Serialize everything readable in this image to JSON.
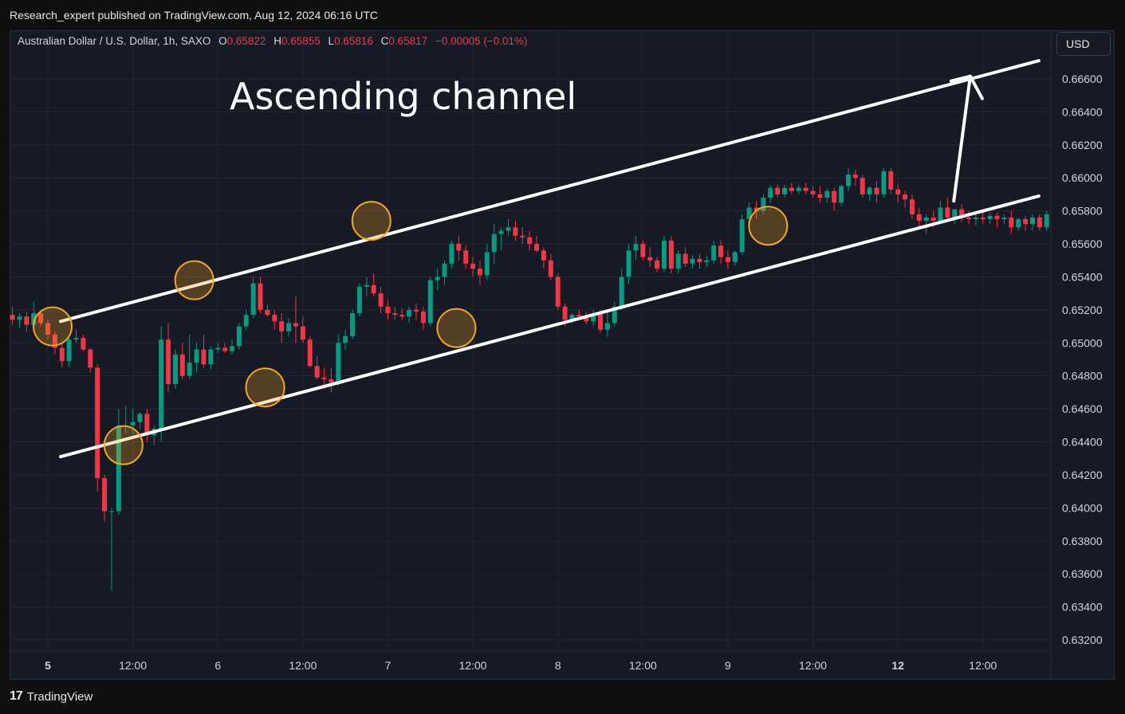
{
  "header": {
    "publish_note": "Research_expert published on TradingView.com, Aug 12, 2024 06:16 UTC"
  },
  "legend": {
    "symbol": "Australian Dollar / U.S. Dollar, 1h, SAXO",
    "o_label": "O",
    "o_value": "0.65822",
    "h_label": "H",
    "h_value": "0.65855",
    "l_label": "L",
    "l_value": "0.65816",
    "c_label": "C",
    "c_value": "0.65817",
    "change": "−0.00005 (−0.01%)"
  },
  "currency_button": "USD",
  "footer": {
    "logo": "17",
    "brand": "TradingView"
  },
  "colors": {
    "background": "#161a25",
    "up": "#089981",
    "down": "#f23645",
    "channel": "#ffffff",
    "marker": "#f5a623"
  },
  "chart_data": {
    "type": "candlestick",
    "title": "Ascending channel",
    "y_ticks": [
      "0.66600",
      "0.66400",
      "0.66200",
      "0.66000",
      "0.65800",
      "0.65600",
      "0.65400",
      "0.65200",
      "0.65000",
      "0.64800",
      "0.64600",
      "0.64400",
      "0.64200",
      "0.64000",
      "0.63800",
      "0.63600",
      "0.63400",
      "0.63200"
    ],
    "ylim": [
      0.6315,
      0.668
    ],
    "x_ticks": [
      {
        "label": "5",
        "bold": true,
        "hour": 0
      },
      {
        "label": "12:00",
        "bold": false,
        "hour": 12
      },
      {
        "label": "6",
        "bold": false,
        "hour": 24
      },
      {
        "label": "12:00",
        "bold": false,
        "hour": 36
      },
      {
        "label": "7",
        "bold": false,
        "hour": 48
      },
      {
        "label": "12:00",
        "bold": false,
        "hour": 60
      },
      {
        "label": "8",
        "bold": false,
        "hour": 72
      },
      {
        "label": "12:00",
        "bold": false,
        "hour": 84
      },
      {
        "label": "9",
        "bold": false,
        "hour": 96
      },
      {
        "label": "12:00",
        "bold": false,
        "hour": 108
      },
      {
        "label": "12",
        "bold": true,
        "hour": 120
      },
      {
        "label": "12:00",
        "bold": false,
        "hour": 132
      }
    ],
    "xlim": [
      -5,
      140
    ],
    "candles_ohlc_from_hour": -5,
    "candles_ohlc": [
      [
        0.6517,
        0.6522,
        0.6511,
        0.6514
      ],
      [
        0.6514,
        0.6518,
        0.6509,
        0.6516
      ],
      [
        0.6516,
        0.6519,
        0.6507,
        0.6511
      ],
      [
        0.6511,
        0.6525,
        0.6508,
        0.6518
      ],
      [
        0.6518,
        0.652,
        0.651,
        0.6512
      ],
      [
        0.6512,
        0.6514,
        0.6502,
        0.6505
      ],
      [
        0.6505,
        0.6507,
        0.6493,
        0.6497
      ],
      [
        0.6497,
        0.65,
        0.6485,
        0.6489
      ],
      [
        0.6489,
        0.6505,
        0.6485,
        0.6502
      ],
      [
        0.6502,
        0.6508,
        0.65,
        0.6503
      ],
      [
        0.6503,
        0.6505,
        0.6495,
        0.6496
      ],
      [
        0.6496,
        0.6497,
        0.6482,
        0.6485
      ],
      [
        0.6485,
        0.6487,
        0.641,
        0.6418
      ],
      [
        0.6418,
        0.642,
        0.6392,
        0.6398
      ],
      [
        0.6398,
        0.64,
        0.635,
        0.6398
      ],
      [
        0.6398,
        0.646,
        0.6396,
        0.645
      ],
      [
        0.645,
        0.6462,
        0.6445,
        0.645
      ],
      [
        0.645,
        0.646,
        0.6445,
        0.6452
      ],
      [
        0.6452,
        0.6458,
        0.6448,
        0.6457
      ],
      [
        0.6457,
        0.646,
        0.644,
        0.6444
      ],
      [
        0.6444,
        0.645,
        0.6438,
        0.6448
      ],
      [
        0.6448,
        0.651,
        0.644,
        0.6502
      ],
      [
        0.6502,
        0.6512,
        0.647,
        0.6475
      ],
      [
        0.6475,
        0.6496,
        0.6472,
        0.6493
      ],
      [
        0.6493,
        0.65,
        0.6478,
        0.648
      ],
      [
        0.648,
        0.6505,
        0.6478,
        0.6488
      ],
      [
        0.6488,
        0.65,
        0.6482,
        0.6496
      ],
      [
        0.6496,
        0.6505,
        0.6485,
        0.6487
      ],
      [
        0.6487,
        0.6498,
        0.6484,
        0.6496
      ],
      [
        0.6496,
        0.65,
        0.6494,
        0.6497
      ],
      [
        0.6497,
        0.65,
        0.6494,
        0.6495
      ],
      [
        0.6495,
        0.6502,
        0.6493,
        0.6498
      ],
      [
        0.6498,
        0.6512,
        0.6496,
        0.651
      ],
      [
        0.651,
        0.652,
        0.6508,
        0.6517
      ],
      [
        0.6517,
        0.654,
        0.6515,
        0.6536
      ],
      [
        0.6536,
        0.654,
        0.6518,
        0.652
      ],
      [
        0.652,
        0.6523,
        0.6516,
        0.6517
      ],
      [
        0.6517,
        0.652,
        0.6508,
        0.6513
      ],
      [
        0.6513,
        0.6518,
        0.65,
        0.6507
      ],
      [
        0.6507,
        0.6515,
        0.6504,
        0.6512
      ],
      [
        0.6512,
        0.6528,
        0.65,
        0.651
      ],
      [
        0.651,
        0.6516,
        0.65,
        0.6502
      ],
      [
        0.6502,
        0.6504,
        0.6485,
        0.6486
      ],
      [
        0.6486,
        0.6492,
        0.6478,
        0.6479
      ],
      [
        0.6479,
        0.6485,
        0.6472,
        0.6478
      ],
      [
        0.6478,
        0.6485,
        0.647,
        0.6476
      ],
      [
        0.6476,
        0.6505,
        0.6474,
        0.65
      ],
      [
        0.65,
        0.6508,
        0.6496,
        0.6504
      ],
      [
        0.6504,
        0.652,
        0.6502,
        0.6518
      ],
      [
        0.6518,
        0.6536,
        0.6516,
        0.6534
      ],
      [
        0.6534,
        0.654,
        0.6528,
        0.6535
      ],
      [
        0.6535,
        0.6542,
        0.6528,
        0.653
      ],
      [
        0.653,
        0.6534,
        0.6518,
        0.6522
      ],
      [
        0.6522,
        0.6526,
        0.6514,
        0.6518
      ],
      [
        0.6518,
        0.6522,
        0.6514,
        0.6517
      ],
      [
        0.6517,
        0.6521,
        0.6514,
        0.6516
      ],
      [
        0.6516,
        0.6522,
        0.6512,
        0.652
      ],
      [
        0.652,
        0.6524,
        0.6514,
        0.6519
      ],
      [
        0.6519,
        0.6522,
        0.6508,
        0.6512
      ],
      [
        0.6512,
        0.654,
        0.651,
        0.6538
      ],
      [
        0.6538,
        0.6545,
        0.6532,
        0.654
      ],
      [
        0.654,
        0.655,
        0.6535,
        0.6548
      ],
      [
        0.6548,
        0.6562,
        0.6545,
        0.656
      ],
      [
        0.656,
        0.6565,
        0.655,
        0.6556
      ],
      [
        0.6556,
        0.6559,
        0.6545,
        0.6548
      ],
      [
        0.6548,
        0.6552,
        0.654,
        0.6545
      ],
      [
        0.6545,
        0.655,
        0.6535,
        0.6541
      ],
      [
        0.6541,
        0.656,
        0.6538,
        0.6555
      ],
      [
        0.6555,
        0.6572,
        0.6548,
        0.6566
      ],
      [
        0.6566,
        0.657,
        0.6556,
        0.6568
      ],
      [
        0.6568,
        0.6575,
        0.6565,
        0.657
      ],
      [
        0.657,
        0.6574,
        0.6562,
        0.6565
      ],
      [
        0.6565,
        0.657,
        0.656,
        0.6564
      ],
      [
        0.6564,
        0.6568,
        0.6556,
        0.656
      ],
      [
        0.656,
        0.6565,
        0.6555,
        0.6556
      ],
      [
        0.6556,
        0.6558,
        0.6545,
        0.655
      ],
      [
        0.655,
        0.6554,
        0.6538,
        0.654
      ],
      [
        0.654,
        0.6542,
        0.652,
        0.6522
      ],
      [
        0.6522,
        0.6524,
        0.651,
        0.6514
      ],
      [
        0.6514,
        0.6518,
        0.6512,
        0.6517
      ],
      [
        0.6517,
        0.652,
        0.6514,
        0.6516
      ],
      [
        0.6516,
        0.6519,
        0.6511,
        0.6513
      ],
      [
        0.6513,
        0.652,
        0.651,
        0.6518
      ],
      [
        0.6518,
        0.652,
        0.6506,
        0.6508
      ],
      [
        0.6508,
        0.652,
        0.6504,
        0.6512
      ],
      [
        0.6512,
        0.6525,
        0.651,
        0.6522
      ],
      [
        0.6522,
        0.6545,
        0.652,
        0.654
      ],
      [
        0.654,
        0.656,
        0.6536,
        0.6556
      ],
      [
        0.6556,
        0.6565,
        0.655,
        0.656
      ],
      [
        0.656,
        0.6562,
        0.655,
        0.6552
      ],
      [
        0.6552,
        0.6558,
        0.6546,
        0.655
      ],
      [
        0.655,
        0.6552,
        0.6543,
        0.6545
      ],
      [
        0.6545,
        0.6565,
        0.6543,
        0.6562
      ],
      [
        0.6562,
        0.6565,
        0.6542,
        0.6545
      ],
      [
        0.6545,
        0.6556,
        0.6542,
        0.6554
      ],
      [
        0.6554,
        0.6558,
        0.6546,
        0.6548
      ],
      [
        0.6548,
        0.6553,
        0.6545,
        0.6551
      ],
      [
        0.6551,
        0.6554,
        0.6545,
        0.6549
      ],
      [
        0.6549,
        0.6553,
        0.6546,
        0.655
      ],
      [
        0.655,
        0.6562,
        0.6548,
        0.6559
      ],
      [
        0.6559,
        0.6562,
        0.6548,
        0.6552
      ],
      [
        0.6552,
        0.6556,
        0.6545,
        0.6549
      ],
      [
        0.6549,
        0.6556,
        0.6547,
        0.6555
      ],
      [
        0.6555,
        0.6578,
        0.6553,
        0.6575
      ],
      [
        0.6575,
        0.6585,
        0.657,
        0.6582
      ],
      [
        0.6582,
        0.6586,
        0.6575,
        0.658
      ],
      [
        0.658,
        0.659,
        0.6578,
        0.6588
      ],
      [
        0.6588,
        0.6596,
        0.6585,
        0.6594
      ],
      [
        0.6594,
        0.6596,
        0.6588,
        0.659
      ],
      [
        0.659,
        0.6596,
        0.6588,
        0.6594
      ],
      [
        0.6594,
        0.6597,
        0.659,
        0.6592
      ],
      [
        0.6592,
        0.6596,
        0.659,
        0.6594
      ],
      [
        0.6594,
        0.6597,
        0.659,
        0.6592
      ],
      [
        0.6592,
        0.6595,
        0.6588,
        0.659
      ],
      [
        0.659,
        0.6595,
        0.6585,
        0.6588
      ],
      [
        0.6588,
        0.6594,
        0.6585,
        0.6592
      ],
      [
        0.6592,
        0.6594,
        0.658,
        0.6585
      ],
      [
        0.6585,
        0.6596,
        0.6583,
        0.6595
      ],
      [
        0.6595,
        0.6606,
        0.6592,
        0.6602
      ],
      [
        0.6602,
        0.6605,
        0.6595,
        0.66
      ],
      [
        0.66,
        0.6602,
        0.6588,
        0.659
      ],
      [
        0.659,
        0.6595,
        0.6586,
        0.6594
      ],
      [
        0.6594,
        0.6598,
        0.6585,
        0.659
      ],
      [
        0.659,
        0.6606,
        0.6588,
        0.6604
      ],
      [
        0.6604,
        0.6606,
        0.659,
        0.6593
      ],
      [
        0.6593,
        0.6596,
        0.6585,
        0.659
      ],
      [
        0.659,
        0.6592,
        0.6582,
        0.6587
      ],
      [
        0.6587,
        0.659,
        0.6575,
        0.6578
      ],
      [
        0.6578,
        0.6582,
        0.657,
        0.6574
      ],
      [
        0.6574,
        0.6578,
        0.6566,
        0.6576
      ],
      [
        0.6576,
        0.658,
        0.657,
        0.6574
      ],
      [
        0.6574,
        0.6586,
        0.6572,
        0.6582
      ],
      [
        0.6582,
        0.6588,
        0.6574,
        0.6576
      ],
      [
        0.6576,
        0.6581,
        0.6572,
        0.6581
      ],
      [
        0.6581,
        0.6584,
        0.6573,
        0.6576
      ],
      [
        0.6576,
        0.658,
        0.6572,
        0.6575
      ],
      [
        0.6575,
        0.6578,
        0.6571,
        0.6576
      ],
      [
        0.6576,
        0.658,
        0.6572,
        0.6575
      ],
      [
        0.6575,
        0.6579,
        0.6572,
        0.6577
      ],
      [
        0.6577,
        0.6579,
        0.657,
        0.6575
      ],
      [
        0.6575,
        0.6578,
        0.6572,
        0.6576
      ],
      [
        0.6576,
        0.658,
        0.6566,
        0.657
      ],
      [
        0.657,
        0.6576,
        0.6568,
        0.6575
      ],
      [
        0.6575,
        0.6577,
        0.6568,
        0.6572
      ],
      [
        0.6572,
        0.6578,
        0.6568,
        0.6576
      ],
      [
        0.6576,
        0.6578,
        0.6568,
        0.657
      ],
      [
        0.657,
        0.658,
        0.6568,
        0.6578
      ],
      [
        0.6578,
        0.6588,
        0.6576,
        0.6584
      ],
      [
        0.6584,
        0.6589,
        0.6582,
        0.6585
      ],
      [
        0.6585,
        0.6588,
        0.658,
        0.6584
      ],
      [
        0.6584,
        0.6587,
        0.6582,
        0.6585
      ],
      [
        0.6585,
        0.6587,
        0.658,
        0.6583
      ],
      [
        0.6583,
        0.6586,
        0.658,
        0.6584
      ],
      [
        0.6584,
        0.6586,
        0.658,
        0.6583
      ],
      [
        0.6583,
        0.6585,
        0.6577,
        0.6582
      ],
      [
        0.6582,
        0.6586,
        0.6582,
        0.6582
      ]
    ],
    "channel": {
      "upper": {
        "from": [
          0,
          0.6511
        ],
        "to": [
          140,
          0.6671
        ]
      },
      "lower": {
        "from": [
          0,
          0.6429
        ],
        "to": [
          140,
          0.6589
        ]
      }
    },
    "arrow": {
      "from": [
        128,
        0.6586
      ],
      "to": [
        131,
        0.6664
      ]
    },
    "touch_points": [
      [
        0,
        0.651
      ],
      [
        10,
        0.6438
      ],
      [
        20,
        0.6538
      ],
      [
        30,
        0.6473
      ],
      [
        45,
        0.6574
      ],
      [
        57,
        0.6509
      ],
      [
        101,
        0.6571
      ]
    ]
  }
}
